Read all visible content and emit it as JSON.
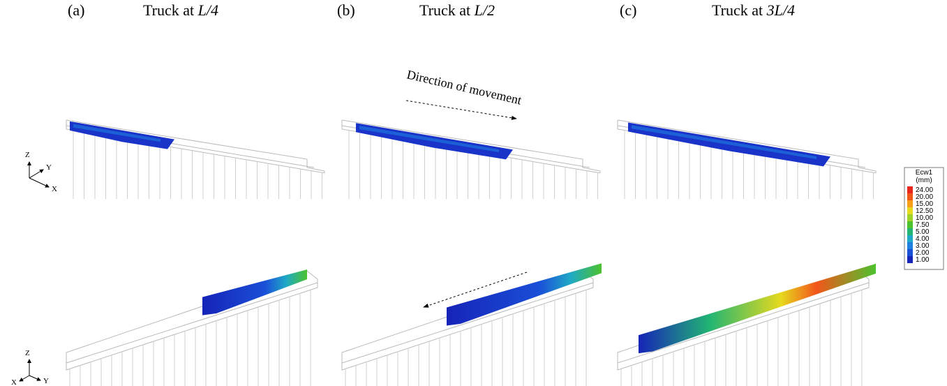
{
  "panels": [
    {
      "label": "(a)",
      "title": "Truck at ",
      "title_italic": "L/4"
    },
    {
      "label": "(b)",
      "title": "Truck at ",
      "title_italic": "L/2"
    },
    {
      "label": "(c)",
      "title": "Truck at ",
      "title_italic": "3L/4"
    }
  ],
  "annotation": "Direction of movement",
  "legend": {
    "title": "Ecw1",
    "unit": "(mm)",
    "levels": [
      {
        "label": "24.00",
        "color": "#e8261c"
      },
      {
        "label": "20.00",
        "color": "#f2561a"
      },
      {
        "label": "15.00",
        "color": "#f7a11a"
      },
      {
        "label": "12.50",
        "color": "#e7d91e"
      },
      {
        "label": "10.00",
        "color": "#9fd32a"
      },
      {
        "label": "7.50",
        "color": "#4cc22e"
      },
      {
        "label": "5.00",
        "color": "#22b573"
      },
      {
        "label": "4.00",
        "color": "#1fa9c6"
      },
      {
        "label": "3.00",
        "color": "#1d7fe0"
      },
      {
        "label": "2.00",
        "color": "#1a4fd8"
      },
      {
        "label": "1.00",
        "color": "#1624b8"
      }
    ]
  },
  "axes_top": {
    "z": "Z",
    "y": "Y",
    "x": "X"
  },
  "axes_bottom": {
    "z": "Z",
    "x": "X",
    "y": "Y"
  }
}
